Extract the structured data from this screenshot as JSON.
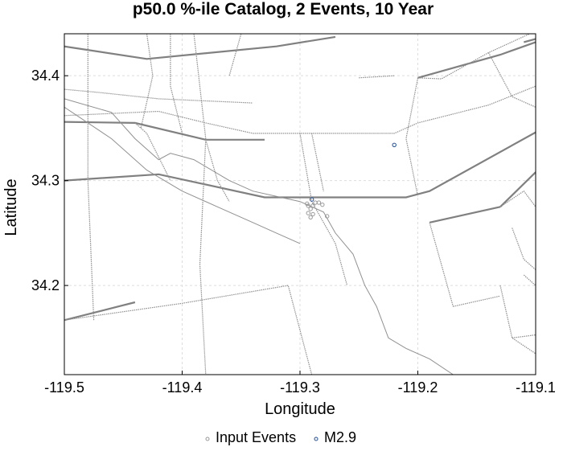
{
  "chart_data": {
    "type": "scatter",
    "title": "p50.0 %-ile Catalog, 2 Events, 10 Year",
    "xlabel": "Longitude",
    "ylabel": "Latitude",
    "xlim": [
      -119.5,
      -119.1
    ],
    "ylim": [
      34.115,
      34.44
    ],
    "x_ticks": [
      -119.5,
      -119.4,
      -119.3,
      -119.2,
      -119.1
    ],
    "x_tick_labels": [
      "-119.5",
      "-119.4",
      "-119.3",
      "-119.2",
      "-119.1"
    ],
    "y_ticks": [
      34.2,
      34.3,
      34.4
    ],
    "y_tick_labels": [
      "34.2",
      "34.3",
      "34.4"
    ],
    "grid": true,
    "legend_position": "bottom-center",
    "series": [
      {
        "name": "Input Events",
        "color": "#999999",
        "points": [
          {
            "x": -119.294,
            "y": 34.278
          },
          {
            "x": -119.293,
            "y": 34.276
          },
          {
            "x": -119.291,
            "y": 34.273
          },
          {
            "x": -119.289,
            "y": 34.276
          },
          {
            "x": -119.287,
            "y": 34.279
          },
          {
            "x": -119.284,
            "y": 34.279
          },
          {
            "x": -119.281,
            "y": 34.277
          },
          {
            "x": -119.291,
            "y": 34.265
          },
          {
            "x": -119.289,
            "y": 34.268
          },
          {
            "x": -119.293,
            "y": 34.269
          },
          {
            "x": -119.277,
            "y": 34.266
          }
        ]
      },
      {
        "name": "M2.9",
        "color": "#1f4e99",
        "points": [
          {
            "x": -119.29,
            "y": 34.282
          },
          {
            "x": -119.22,
            "y": 34.334
          }
        ]
      }
    ]
  },
  "colors": {
    "fault_heavy": "#808080",
    "fault_light": "#909090",
    "grid": "#dddddd"
  },
  "fault_traces": {
    "heavy": [
      [
        [
          -119.5,
          34.428
        ],
        [
          -119.43,
          34.416
        ],
        [
          -119.32,
          34.428
        ],
        [
          -119.27,
          34.437
        ]
      ],
      [
        [
          -119.5,
          34.356
        ],
        [
          -119.44,
          34.355
        ],
        [
          -119.38,
          34.339
        ],
        [
          -119.33,
          34.339
        ]
      ],
      [
        [
          -119.5,
          34.3
        ],
        [
          -119.42,
          34.306
        ],
        [
          -119.33,
          34.284
        ],
        [
          -119.21,
          34.284
        ],
        [
          -119.19,
          34.29
        ],
        [
          -119.1,
          34.346
        ]
      ],
      [
        [
          -119.2,
          34.398
        ],
        [
          -119.13,
          34.42
        ],
        [
          -119.1,
          34.432
        ]
      ],
      [
        [
          -119.5,
          34.167
        ],
        [
          -119.44,
          34.184
        ]
      ],
      [
        [
          -119.19,
          34.26
        ],
        [
          -119.13,
          34.275
        ]
      ],
      [
        [
          -119.13,
          34.275
        ],
        [
          -119.1,
          34.308
        ]
      ],
      [
        [
          -119.11,
          34.432
        ],
        [
          -119.1,
          34.435
        ]
      ]
    ],
    "light": [
      [
        [
          -119.5,
          34.387
        ],
        [
          -119.47,
          34.384
        ],
        [
          -119.42,
          34.378
        ],
        [
          -119.34,
          34.374
        ]
      ],
      [
        [
          -119.35,
          34.44
        ],
        [
          -119.36,
          34.4
        ]
      ],
      [
        [
          -119.48,
          34.44
        ],
        [
          -119.48,
          34.3
        ],
        [
          -119.475,
          34.167
        ]
      ],
      [
        [
          -119.39,
          34.44
        ],
        [
          -119.38,
          34.34
        ],
        [
          -119.385,
          34.22
        ],
        [
          -119.38,
          34.115
        ]
      ],
      [
        [
          -119.2,
          34.398
        ],
        [
          -119.18,
          34.397
        ],
        [
          -119.14,
          34.422
        ],
        [
          -119.105,
          34.44
        ]
      ],
      [
        [
          -119.5,
          34.167
        ],
        [
          -119.4,
          34.183
        ],
        [
          -119.31,
          34.2
        ],
        [
          -119.29,
          34.115
        ]
      ],
      [
        [
          -119.5,
          34.362
        ],
        [
          -119.42,
          34.366
        ],
        [
          -119.38,
          34.355
        ],
        [
          -119.34,
          34.345
        ],
        [
          -119.22,
          34.345
        ],
        [
          -119.2,
          34.355
        ],
        [
          -119.14,
          34.372
        ],
        [
          -119.1,
          34.39
        ]
      ],
      [
        [
          -119.43,
          34.44
        ],
        [
          -119.425,
          34.4
        ],
        [
          -119.435,
          34.35
        ]
      ],
      [
        [
          -119.41,
          34.44
        ],
        [
          -119.41,
          34.39
        ],
        [
          -119.4,
          34.345
        ]
      ],
      [
        [
          -119.44,
          34.355
        ],
        [
          -119.43,
          34.345
        ],
        [
          -119.41,
          34.3
        ]
      ],
      [
        [
          -119.38,
          34.339
        ],
        [
          -119.37,
          34.3
        ],
        [
          -119.36,
          34.28
        ]
      ],
      [
        [
          -119.25,
          34.398
        ],
        [
          -119.22,
          34.4
        ]
      ],
      [
        [
          -119.2,
          34.398
        ],
        [
          -119.21,
          34.34
        ],
        [
          -119.2,
          34.285
        ]
      ],
      [
        [
          -119.14,
          34.422
        ],
        [
          -119.12,
          34.38
        ],
        [
          -119.1,
          34.37
        ]
      ],
      [
        [
          -119.3,
          34.345
        ],
        [
          -119.29,
          34.28
        ],
        [
          -119.27,
          34.24
        ],
        [
          -119.26,
          34.2
        ]
      ],
      [
        [
          -119.29,
          34.345
        ],
        [
          -119.28,
          34.29
        ]
      ],
      [
        [
          -119.19,
          34.26
        ],
        [
          -119.18,
          34.22
        ],
        [
          -119.17,
          34.18
        ]
      ],
      [
        [
          -119.17,
          34.18
        ],
        [
          -119.13,
          34.19
        ]
      ],
      [
        [
          -119.13,
          34.275
        ],
        [
          -119.11,
          34.29
        ],
        [
          -119.1,
          34.275
        ]
      ],
      [
        [
          -119.12,
          34.255
        ],
        [
          -119.11,
          34.225
        ],
        [
          -119.1,
          34.215
        ]
      ],
      [
        [
          -119.11,
          34.21
        ],
        [
          -119.1,
          34.2
        ]
      ],
      [
        [
          -119.13,
          34.2
        ],
        [
          -119.12,
          34.15
        ],
        [
          -119.1,
          34.135
        ]
      ],
      [
        [
          -119.12,
          34.15
        ],
        [
          -119.05,
          34.16
        ]
      ],
      [
        [
          -119.13,
          34.1
        ],
        [
          -119.13,
          34.08
        ]
      ]
    ],
    "thin": [
      [
        [
          -119.5,
          34.378
        ],
        [
          -119.46,
          34.365
        ],
        [
          -119.44,
          34.34
        ],
        [
          -119.42,
          34.32
        ],
        [
          -119.41,
          34.326
        ],
        [
          -119.39,
          34.32
        ],
        [
          -119.36,
          34.3
        ],
        [
          -119.34,
          34.29
        ],
        [
          -119.32,
          34.285
        ],
        [
          -119.3,
          34.28
        ],
        [
          -119.28,
          34.27
        ],
        [
          -119.27,
          34.25
        ],
        [
          -119.255,
          34.23
        ],
        [
          -119.245,
          34.2
        ],
        [
          -119.235,
          34.18
        ],
        [
          -119.225,
          34.15
        ],
        [
          -119.21,
          34.14
        ],
        [
          -119.19,
          34.13
        ],
        [
          -119.17,
          34.115
        ]
      ],
      [
        [
          -119.5,
          34.37
        ],
        [
          -119.46,
          34.34
        ],
        [
          -119.43,
          34.31
        ],
        [
          -119.4,
          34.29
        ],
        [
          -119.37,
          34.275
        ],
        [
          -119.34,
          34.26
        ],
        [
          -119.32,
          34.25
        ],
        [
          -119.3,
          34.24
        ]
      ]
    ]
  }
}
